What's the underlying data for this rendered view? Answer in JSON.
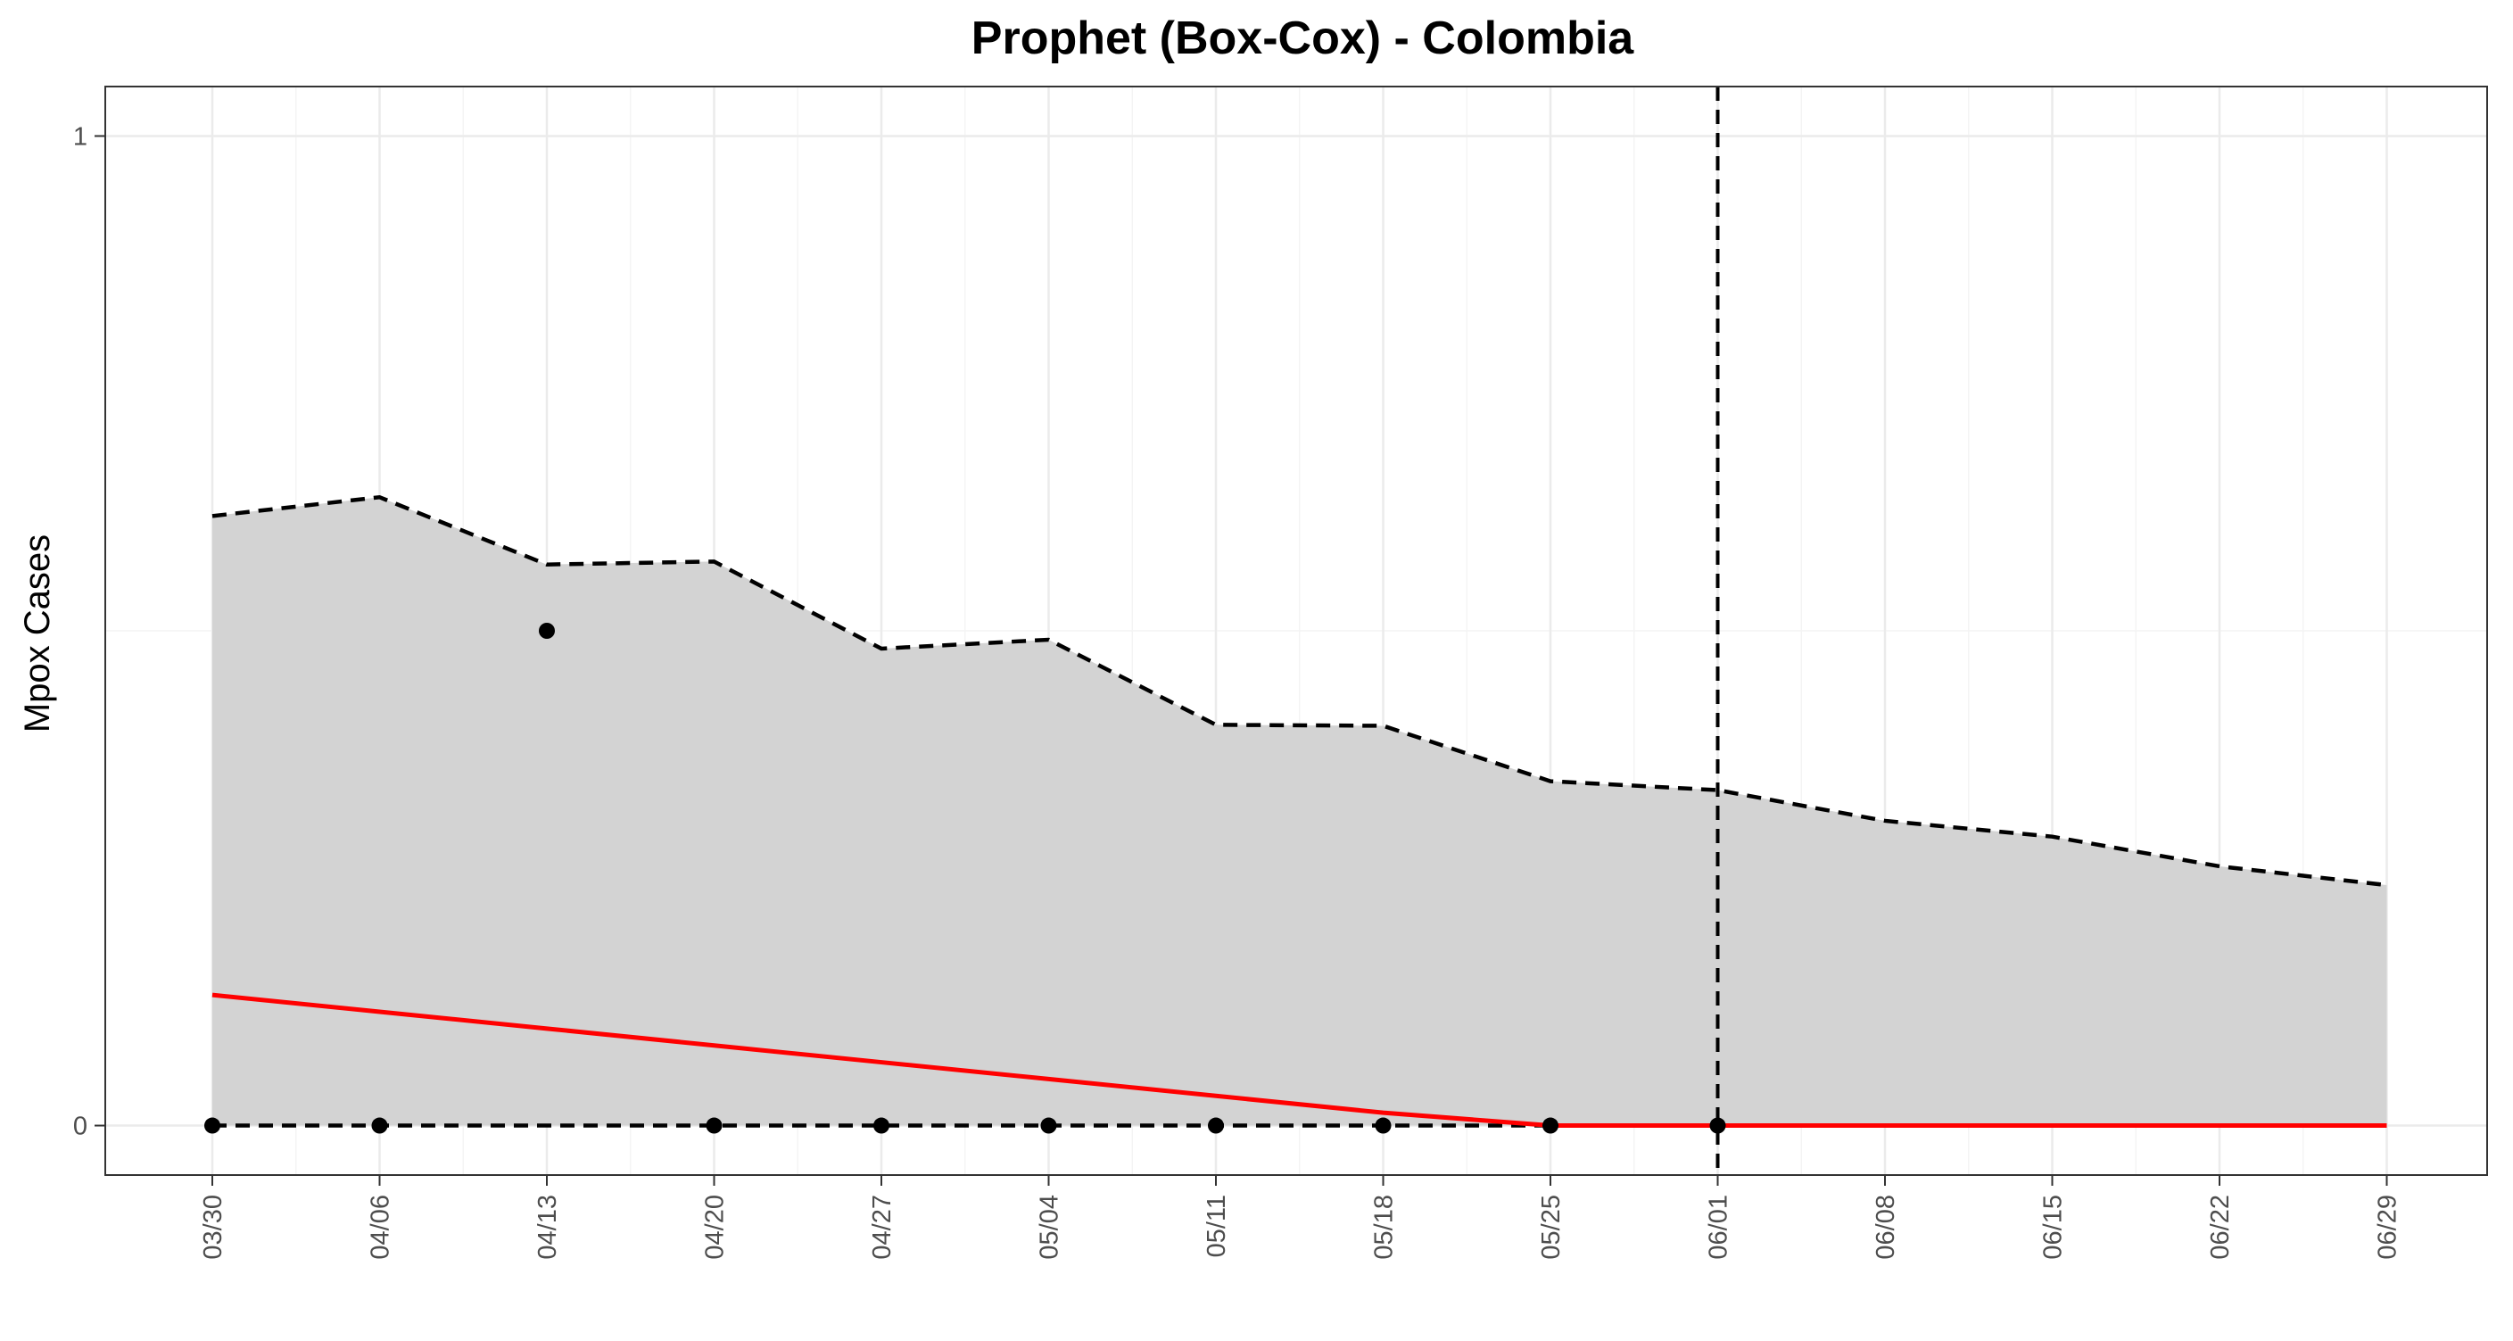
{
  "chart_data": {
    "type": "line",
    "title": "Prophet (Box-Cox) - Colombia",
    "xlabel": "",
    "ylabel": "Mpox Cases",
    "x": [
      "03/30",
      "04/06",
      "04/13",
      "04/20",
      "04/27",
      "05/04",
      "05/11",
      "05/18",
      "05/25",
      "06/01",
      "06/08",
      "06/15",
      "06/22",
      "06/29"
    ],
    "x_tick_labels": [
      "03/30",
      "04/06",
      "04/13",
      "04/20",
      "04/27",
      "05/04",
      "05/11",
      "05/18",
      "05/25",
      "06/01",
      "06/08",
      "06/15",
      "06/22",
      "06/29"
    ],
    "y_tick_labels": [
      "0",
      "1"
    ],
    "ylim": [
      -0.05,
      1.05
    ],
    "y_ticks": [
      0,
      1
    ],
    "grid": true,
    "forecast_start": "06/01",
    "observed": {
      "x": [
        "03/30",
        "04/06",
        "04/13",
        "04/20",
        "04/27",
        "05/04",
        "05/11",
        "05/18",
        "05/25",
        "06/01"
      ],
      "values": [
        0,
        0,
        0.5,
        0,
        0,
        0,
        0,
        0,
        0,
        0
      ]
    },
    "fitted": {
      "values": [
        0.132,
        0.115,
        0.098,
        0.081,
        0.064,
        0.047,
        0.03,
        0.013,
        0,
        0,
        0,
        0,
        0,
        0
      ]
    },
    "upper_bound": {
      "values": [
        0.616,
        0.635,
        0.567,
        0.57,
        0.482,
        0.491,
        0.405,
        0.404,
        0.348,
        0.339,
        0.308,
        0.292,
        0.262,
        0.243
      ]
    },
    "lower_bound": {
      "values": [
        0,
        0,
        0,
        0,
        0,
        0,
        0,
        0,
        0,
        0,
        0,
        0,
        0,
        0
      ]
    },
    "colors": {
      "band": "#d3d3d3",
      "fitted": "#ff0000",
      "bounds": "#000000",
      "points": "#000000",
      "grid_major": "#ebebeb",
      "grid_minor": "#f4f4f4",
      "panel_border": "#333333"
    }
  }
}
